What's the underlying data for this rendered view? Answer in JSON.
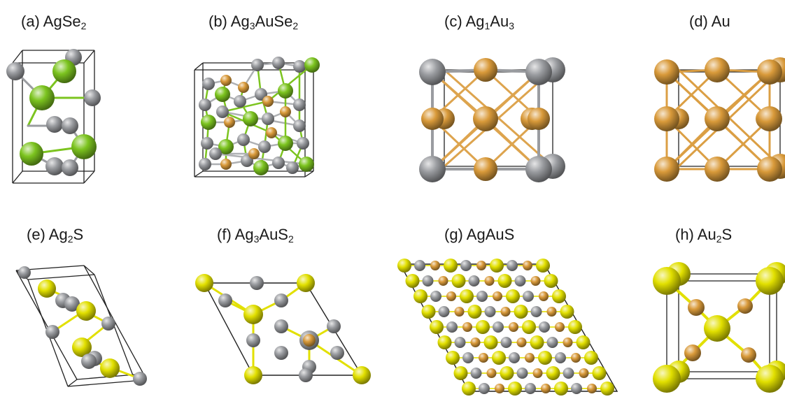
{
  "colors": {
    "Ag": "#9a9ca0",
    "Au": "#d99a3a",
    "Se": "#7cc41f",
    "S": "#e2e000",
    "cell_edge": "#222222"
  },
  "panels": [
    {
      "id": "a",
      "prefix": "(a) ",
      "formula": [
        [
          "Ag",
          ""
        ],
        [
          "Se",
          "2"
        ]
      ]
    },
    {
      "id": "b",
      "prefix": "(b) ",
      "formula": [
        [
          "Ag",
          "3"
        ],
        [
          "AuSe",
          "2"
        ]
      ]
    },
    {
      "id": "c",
      "prefix": "(c) ",
      "formula": [
        [
          "Ag",
          "1"
        ],
        [
          "Au",
          "3"
        ]
      ]
    },
    {
      "id": "d",
      "prefix": "(d) ",
      "formula": [
        [
          "Au",
          ""
        ]
      ]
    },
    {
      "id": "e",
      "prefix": "(e) ",
      "formula": [
        [
          "Ag",
          "2"
        ],
        [
          "S",
          ""
        ]
      ]
    },
    {
      "id": "f",
      "prefix": "(f) ",
      "formula": [
        [
          "Ag",
          "3"
        ],
        [
          "AuS",
          "2"
        ]
      ]
    },
    {
      "id": "g",
      "prefix": "(g) ",
      "formula": [
        [
          "AgAuS",
          ""
        ]
      ]
    },
    {
      "id": "h",
      "prefix": "(h) ",
      "formula": [
        [
          "Au",
          "2"
        ],
        [
          "S",
          ""
        ]
      ]
    }
  ]
}
